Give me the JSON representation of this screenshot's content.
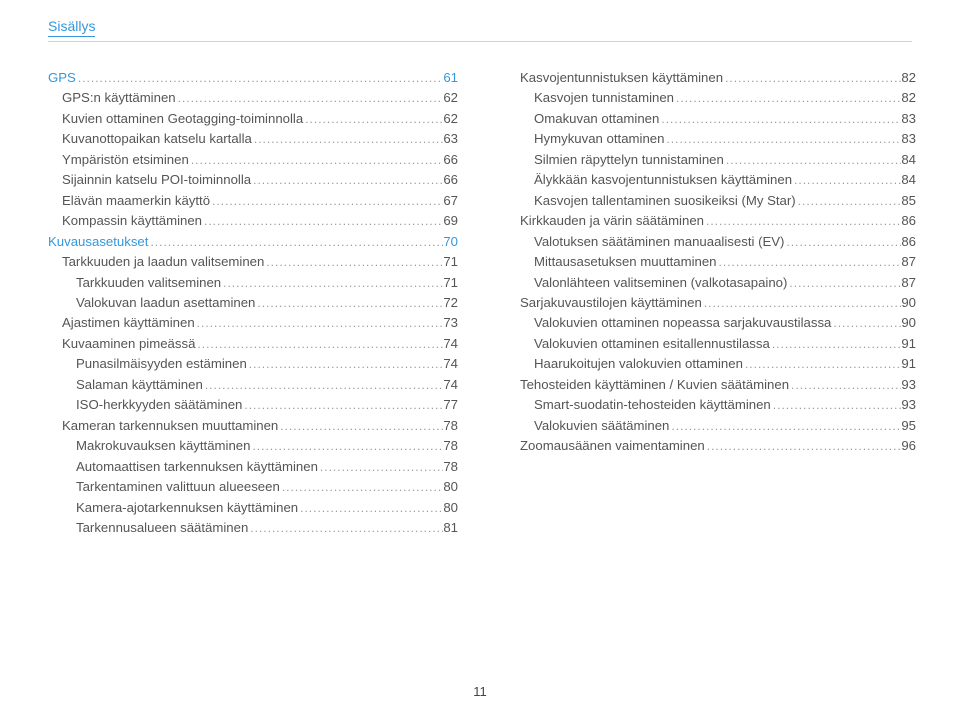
{
  "running_head": "Sisällys",
  "page_number": "11",
  "colors": {
    "link": "#3498db",
    "text": "#555",
    "rule": "#b9d9ef"
  },
  "left": [
    {
      "level": 0,
      "section": true,
      "label": "GPS",
      "page": "61"
    },
    {
      "level": 1,
      "label": "GPS:n käyttäminen",
      "page": "62"
    },
    {
      "level": 1,
      "label": "Kuvien ottaminen Geotagging-toiminnolla",
      "page": "62"
    },
    {
      "level": 1,
      "label": "Kuvanottopaikan katselu kartalla",
      "page": "63"
    },
    {
      "level": 1,
      "label": "Ympäristön etsiminen",
      "page": "66"
    },
    {
      "level": 1,
      "label": "Sijainnin katselu POI-toiminnolla",
      "page": "66"
    },
    {
      "level": 1,
      "label": "Elävän maamerkin käyttö",
      "page": "67"
    },
    {
      "level": 1,
      "label": "Kompassin käyttäminen",
      "page": "69"
    },
    {
      "level": 0,
      "section": true,
      "label": "Kuvausasetukset",
      "page": "70"
    },
    {
      "level": 1,
      "label": "Tarkkuuden ja laadun valitseminen",
      "page": "71"
    },
    {
      "level": 2,
      "label": "Tarkkuuden valitseminen",
      "page": "71"
    },
    {
      "level": 2,
      "label": "Valokuvan laadun asettaminen",
      "page": "72"
    },
    {
      "level": 1,
      "label": "Ajastimen käyttäminen",
      "page": "73"
    },
    {
      "level": 1,
      "label": "Kuvaaminen pimeässä",
      "page": "74"
    },
    {
      "level": 2,
      "label": "Punasilmäisyyden estäminen",
      "page": "74"
    },
    {
      "level": 2,
      "label": "Salaman käyttäminen",
      "page": "74"
    },
    {
      "level": 2,
      "label": "ISO-herkkyyden säätäminen",
      "page": "77"
    },
    {
      "level": 1,
      "label": "Kameran tarkennuksen muuttaminen",
      "page": "78"
    },
    {
      "level": 2,
      "label": "Makrokuvauksen käyttäminen",
      "page": "78"
    },
    {
      "level": 2,
      "label": "Automaattisen tarkennuksen käyttäminen",
      "page": "78"
    },
    {
      "level": 2,
      "label": "Tarkentaminen valittuun alueeseen",
      "page": "80"
    },
    {
      "level": 2,
      "label": "Kamera-ajotarkennuksen käyttäminen",
      "page": "80"
    },
    {
      "level": 2,
      "label": "Tarkennusalueen säätäminen",
      "page": "81"
    }
  ],
  "right": [
    {
      "level": 1,
      "label": "Kasvojentunnistuksen käyttäminen",
      "page": "82"
    },
    {
      "level": 2,
      "label": "Kasvojen tunnistaminen",
      "page": "82"
    },
    {
      "level": 2,
      "label": "Omakuvan ottaminen",
      "page": "83"
    },
    {
      "level": 2,
      "label": "Hymykuvan ottaminen",
      "page": "83"
    },
    {
      "level": 2,
      "label": "Silmien räpyttelyn tunnistaminen",
      "page": "84"
    },
    {
      "level": 2,
      "label": "Älykkään kasvojentunnistuksen käyttäminen",
      "page": "84"
    },
    {
      "level": 2,
      "label": "Kasvojen tallentaminen suosikeiksi (My Star)",
      "page": "85"
    },
    {
      "level": 1,
      "label": "Kirkkauden ja värin säätäminen",
      "page": "86"
    },
    {
      "level": 2,
      "label": "Valotuksen säätäminen manuaalisesti (EV)",
      "page": "86"
    },
    {
      "level": 2,
      "label": "Mittausasetuksen muuttaminen",
      "page": "87"
    },
    {
      "level": 2,
      "label": "Valonlähteen valitseminen (valkotasapaino)",
      "page": "87"
    },
    {
      "level": 1,
      "label": "Sarjakuvaustilojen käyttäminen",
      "page": "90"
    },
    {
      "level": 2,
      "label": "Valokuvien ottaminen nopeassa sarjakuvaustilassa",
      "page": "90"
    },
    {
      "level": 2,
      "label": "Valokuvien ottaminen esitallennustilassa",
      "page": "91"
    },
    {
      "level": 2,
      "label": "Haarukoitujen valokuvien ottaminen",
      "page": "91"
    },
    {
      "level": 1,
      "label": "Tehosteiden käyttäminen / Kuvien säätäminen",
      "page": "93"
    },
    {
      "level": 2,
      "label": "Smart-suodatin-tehosteiden käyttäminen",
      "page": "93"
    },
    {
      "level": 2,
      "label": "Valokuvien säätäminen",
      "page": "95"
    },
    {
      "level": 1,
      "label": "Zoomausäänen vaimentaminen",
      "page": "96"
    }
  ]
}
